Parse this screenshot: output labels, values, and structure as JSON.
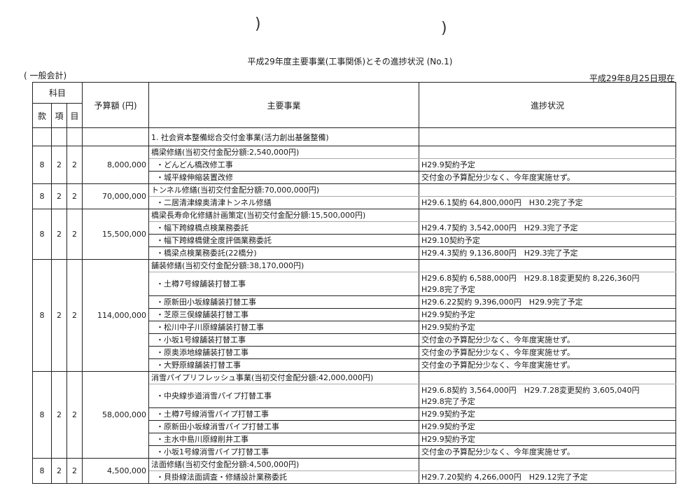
{
  "document": {
    "title": "平成29年度主要事業(工事関係)とその進捗状況 (No.1)",
    "account": "( 一般会計)",
    "as_of": "平成29年8月25日現在"
  },
  "table": {
    "headers": {
      "kamoku": "科目",
      "kan": "款",
      "kou": "項",
      "moku": "目",
      "budget": "予算額 (円)",
      "project": "主要事業",
      "progress": "進捗状況"
    },
    "section_title": "1. 社会資本整備総合交付金事業(活力創出基盤整備)",
    "groups": [
      {
        "kan": "8",
        "kou": "2",
        "moku": "2",
        "budget": "8,000,000",
        "title": "橋梁修繕(当初交付金配分額:2,540,000円)",
        "items": [
          {
            "name": "・どんどん橋改修工事",
            "progress": [
              "H29.9契約予定"
            ]
          },
          {
            "name": "・城平線伸縮装置改修",
            "progress": [
              "交付金の予算配分少なく、今年度実施せず。"
            ]
          }
        ]
      },
      {
        "kan": "8",
        "kou": "2",
        "moku": "2",
        "budget": "70,000,000",
        "title": "トンネル修繕(当初交付金配分額:70,000,000円)",
        "items": [
          {
            "name": "・二居清津線奥清津トンネル修繕",
            "progress": [
              "H29.6.1契約 64,800,000円　H30.2完了予定"
            ]
          }
        ]
      },
      {
        "kan": "8",
        "kou": "2",
        "moku": "2",
        "budget": "15,500,000",
        "title": "橋梁長寿命化修繕計画策定(当初交付金配分額:15,500,000円)",
        "items": [
          {
            "name": "・幅下跨線橋点検業務委託",
            "progress": [
              "H29.4.7契約 3,542,000円　H29.3完了予定"
            ]
          },
          {
            "name": "・幅下跨線橋健全度評価業務委託",
            "progress": [
              "H29.10契約予定"
            ]
          },
          {
            "name": "・橋梁点検業務委託(22橋分)",
            "progress": [
              "H29.4.3契約 9,136,800円　H29.3完了予定"
            ]
          }
        ]
      },
      {
        "kan": "8",
        "kou": "2",
        "moku": "2",
        "budget": "114,000,000",
        "title": "舗装修繕(当初交付金配分額:38,170,000円)",
        "items": [
          {
            "name": "・土樽7号線舗装打替工事",
            "progress": [
              "H29.6.8契約 6,588,000円　H29.8.18変更契約 8,226,360円",
              "H29.8完了予定"
            ]
          },
          {
            "name": "・原新田小坂線舗装打替工事",
            "progress": [
              "H29.6.22契約 9,396,000円　H29.9完了予定"
            ]
          },
          {
            "name": "・芝原三俣線舗装打替工事",
            "progress": [
              "H29.9契約予定"
            ]
          },
          {
            "name": "・松川中子川原線舗装打替工事",
            "progress": [
              "H29.9契約予定"
            ]
          },
          {
            "name": "・小坂1号線舗装打替工事",
            "progress": [
              "交付金の予算配分少なく、今年度実施せず。"
            ]
          },
          {
            "name": "・原奥添地線舗装打替工事",
            "progress": [
              "交付金の予算配分少なく、今年度実施せず。"
            ]
          },
          {
            "name": "・大野原線舗装打替工事",
            "progress": [
              "交付金の予算配分少なく、今年度実施せず。"
            ]
          }
        ]
      },
      {
        "kan": "8",
        "kou": "2",
        "moku": "2",
        "budget": "58,000,000",
        "title": "消雪パイプリフレッシュ事業(当初交付金配分額:42,000,000円)",
        "items": [
          {
            "name": "・中央線歩道消雪パイプ打替工事",
            "progress": [
              "H29.6.8契約 3,564,000円　H29.7.28変更契約 3,605,040円",
              "H29.8完了予定"
            ]
          },
          {
            "name": "・土樽7号線消雪パイプ打替工事",
            "progress": [
              "H29.9契約予定"
            ]
          },
          {
            "name": "・原新田小坂線消雪パイプ打替工事",
            "progress": [
              "H29.9契約予定"
            ]
          },
          {
            "name": "・主水中島川原線削井工事",
            "progress": [
              "H29.9契約予定"
            ]
          },
          {
            "name": "・小坂1号線消雪パイプ打替工事",
            "progress": [
              "交付金の予算配分少なく、今年度実施せず。"
            ]
          }
        ]
      },
      {
        "kan": "8",
        "kou": "2",
        "moku": "2",
        "budget": "4,500,000",
        "title": "法面修繕(当初交付金配分額:4,500,000円)",
        "items": [
          {
            "name": "・貝掛線法面調査・修繕設計業務委託",
            "progress": [
              "H29.7.20契約 4,266,000円　H29.12完了予定"
            ]
          }
        ]
      }
    ]
  }
}
